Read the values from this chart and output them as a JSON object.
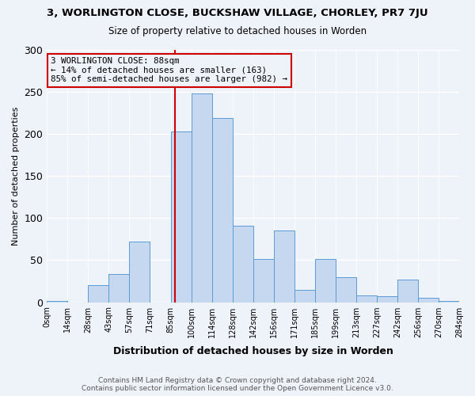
{
  "title_line1": "3, WORLINGTON CLOSE, BUCKSHAW VILLAGE, CHORLEY, PR7 7JU",
  "title_line2": "Size of property relative to detached houses in Worden",
  "xlabel": "Distribution of detached houses by size in Worden",
  "ylabel": "Number of detached properties",
  "bin_labels": [
    "0sqm",
    "14sqm",
    "28sqm",
    "43sqm",
    "57sqm",
    "71sqm",
    "85sqm",
    "100sqm",
    "114sqm",
    "128sqm",
    "142sqm",
    "156sqm",
    "171sqm",
    "185sqm",
    "199sqm",
    "213sqm",
    "227sqm",
    "242sqm",
    "256sqm",
    "270sqm",
    "284sqm"
  ],
  "bar_values": [
    1,
    0,
    20,
    33,
    72,
    0,
    203,
    248,
    219,
    91,
    51,
    85,
    15,
    51,
    30,
    8,
    7,
    27,
    5,
    1
  ],
  "bar_color": "#c5d8f0",
  "bar_edge_color": "#5b9bd5",
  "vline_color": "#cc0000",
  "annotation_line1": "3 WORLINGTON CLOSE: 88sqm",
  "annotation_line2": "← 14% of detached houses are smaller (163)",
  "annotation_line3": "85% of semi-detached houses are larger (982) →",
  "annotation_box_edge_color": "#cc0000",
  "ylim": [
    0,
    300
  ],
  "yticks": [
    0,
    50,
    100,
    150,
    200,
    250,
    300
  ],
  "footer_line1": "Contains HM Land Registry data © Crown copyright and database right 2024.",
  "footer_line2": "Contains public sector information licensed under the Open Government Licence v3.0.",
  "background_color": "#eef2f9",
  "grid_color": "#ffffff"
}
